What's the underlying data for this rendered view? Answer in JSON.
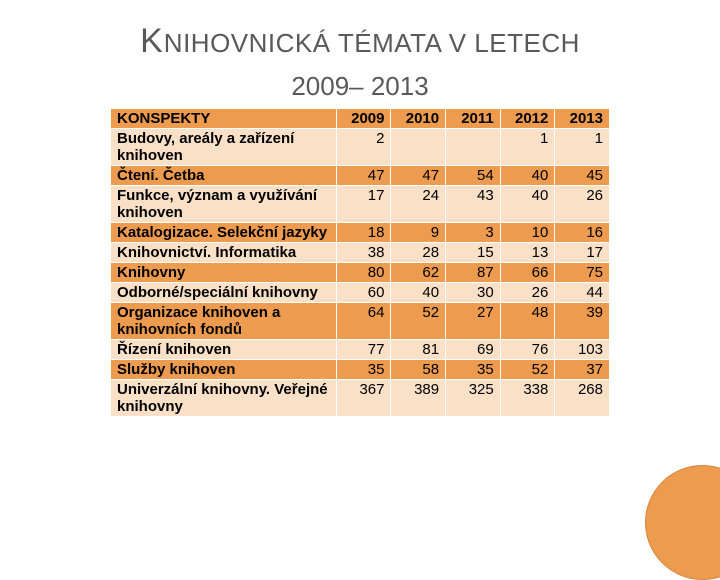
{
  "title_line1_first": "K",
  "title_line1_rest": "NIHOVNICKÁ TÉMATA V LETECH",
  "title_line2": "2009– 2013",
  "colors": {
    "row_orange": "#ed9b4f",
    "row_light": "#f9e0c7",
    "cell_border": "#ffffff",
    "text_heading": "#595959",
    "circle_fill": "#ed9b4f",
    "circle_border": "#d6863e",
    "background": "#ffffff"
  },
  "table": {
    "header_label": "KONSPEKTY",
    "year_headers": [
      "2009",
      "2010",
      "2011",
      "2012",
      "2013"
    ],
    "rows": [
      {
        "label": " Budovy, areály a zařízení knihoven",
        "values": [
          "2",
          "",
          "",
          "1",
          "1"
        ]
      },
      {
        "label": " Čtení. Četba",
        "values": [
          "47",
          "47",
          "54",
          "40",
          "45"
        ]
      },
      {
        "label": " Funkce, význam a využívání knihoven",
        "values": [
          "17",
          "24",
          "43",
          "40",
          "26"
        ]
      },
      {
        "label": " Katalogizace. Selekční jazyky",
        "values": [
          "18",
          "9",
          "3",
          "10",
          "16"
        ]
      },
      {
        "label": " Knihovnictví. Informatika",
        "values": [
          "38",
          "28",
          "15",
          "13",
          "17"
        ]
      },
      {
        "label": " Knihovny",
        "values": [
          "80",
          "62",
          "87",
          "66",
          "75"
        ]
      },
      {
        "label": " Odborné/speciální knihovny",
        "values": [
          "60",
          "40",
          "30",
          "26",
          "44"
        ]
      },
      {
        "label": " Organizace knihoven a knihovních fondů",
        "values": [
          "64",
          "52",
          "27",
          "48",
          "39"
        ]
      },
      {
        "label": " Řízení knihoven",
        "values": [
          "77",
          "81",
          "69",
          "76",
          "103"
        ]
      },
      {
        "label": " Služby knihoven",
        "values": [
          "35",
          "58",
          "35",
          "52",
          "37"
        ]
      },
      {
        "label": " Univerzální knihovny. Veřejné knihovny",
        "values": [
          "367",
          "389",
          "325",
          "338",
          "268"
        ]
      }
    ]
  }
}
